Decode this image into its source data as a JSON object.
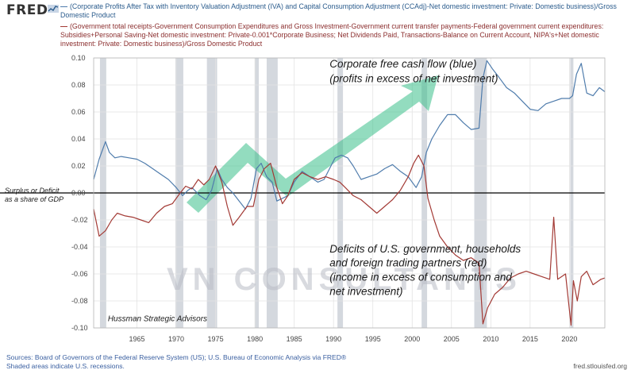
{
  "header": {
    "logo_text": "FRED",
    "logo_icon": "fred-graph-icon"
  },
  "footer": {
    "source": "Sources: Board of Governors of the Federal Reserve System (US); U.S. Bureau of Economic Analysis via FRED®",
    "recession_note": "Shaded areas indicate U.S. recessions.",
    "site": "fred.stlouisfed.org"
  },
  "watermark": "VN CONSULTANTS",
  "chart_data": {
    "type": "line",
    "title": "",
    "xlabel": "",
    "ylabel": "Surplus or Deficit as a share of GDP",
    "ylabel_lines": [
      "Surplus or Deficit",
      "as a share of GDP"
    ],
    "xlim": [
      1959.5,
      2024.5
    ],
    "ylim": [
      -0.1,
      0.1
    ],
    "y_ticks": [
      0.1,
      0.08,
      0.06,
      0.04,
      0.02,
      0.0,
      -0.02,
      -0.04,
      -0.06,
      -0.08,
      -0.1
    ],
    "y_tick_labels": [
      "0.10",
      "0.08",
      "0.06",
      "0.04",
      "0.02",
      "0.00",
      "-0.02",
      "-0.04",
      "-0.06",
      "-0.08",
      "-0.10"
    ],
    "x_ticks": [
      1965,
      1970,
      1975,
      1980,
      1985,
      1990,
      1995,
      2000,
      2005,
      2010,
      2015,
      2020
    ],
    "x_tick_labels": [
      "1965",
      "1970",
      "1975",
      "1980",
      "1985",
      "1990",
      "1995",
      "2000",
      "2005",
      "2010",
      "2015",
      "2020"
    ],
    "grid": true,
    "legend_position": "top",
    "recessions": [
      [
        1960.3,
        1961.1
      ],
      [
        1969.9,
        1970.9
      ],
      [
        1973.9,
        1975.2
      ],
      [
        1980.0,
        1980.5
      ],
      [
        1981.5,
        1982.9
      ],
      [
        1990.5,
        1991.2
      ],
      [
        2001.2,
        2001.9
      ],
      [
        2007.9,
        2009.5
      ],
      [
        2020.1,
        2020.5
      ]
    ],
    "zero_line": 0.0,
    "series": [
      {
        "name": "(Corporate Profits After Tax with Inventory Valuation Adjustment (IVA) and Capital Consumption Adjustment (CCAdj)-Net domestic investment: Private: Domestic business)/Gross Domestic Product",
        "color": "#4f7cac",
        "x": [
          1959.5,
          1960.2,
          1961.0,
          1961.5,
          1962.2,
          1963.0,
          1964.0,
          1965.0,
          1966.0,
          1967.0,
          1968.0,
          1969.0,
          1970.0,
          1970.8,
          1971.5,
          1972.0,
          1973.0,
          1973.8,
          1974.5,
          1975.2,
          1975.8,
          1976.5,
          1977.2,
          1978.0,
          1978.8,
          1979.5,
          1980.2,
          1980.8,
          1981.5,
          1982.2,
          1982.8,
          1983.5,
          1984.2,
          1985.0,
          1986.0,
          1987.0,
          1988.0,
          1988.8,
          1989.5,
          1990.2,
          1991.0,
          1991.8,
          1992.5,
          1993.5,
          1994.5,
          1995.5,
          1996.5,
          1997.5,
          1998.5,
          1999.5,
          2000.5,
          2001.2,
          2001.8,
          2002.5,
          2003.5,
          2004.5,
          2005.5,
          2006.5,
          2007.5,
          2008.5,
          2009.0,
          2009.5,
          2010.2,
          2011.0,
          2012.0,
          2013.0,
          2014.0,
          2015.0,
          2016.0,
          2017.0,
          2018.0,
          2019.0,
          2020.0,
          2020.4,
          2020.9,
          2021.5,
          2022.2,
          2023.0,
          2023.8,
          2024.5
        ],
        "y": [
          0.01,
          0.025,
          0.038,
          0.03,
          0.026,
          0.027,
          0.026,
          0.025,
          0.022,
          0.018,
          0.014,
          0.01,
          0.004,
          -0.002,
          0.002,
          0.004,
          -0.002,
          -0.005,
          0.002,
          0.018,
          0.01,
          0.004,
          0.0,
          -0.006,
          -0.012,
          -0.004,
          0.018,
          0.022,
          0.012,
          0.008,
          -0.006,
          -0.004,
          -0.002,
          0.008,
          0.016,
          0.012,
          0.008,
          0.01,
          0.018,
          0.026,
          0.028,
          0.026,
          0.02,
          0.01,
          0.012,
          0.014,
          0.018,
          0.021,
          0.016,
          0.012,
          0.004,
          0.012,
          0.03,
          0.04,
          0.05,
          0.058,
          0.058,
          0.052,
          0.047,
          0.048,
          0.085,
          0.098,
          0.092,
          0.086,
          0.078,
          0.074,
          0.068,
          0.062,
          0.061,
          0.066,
          0.068,
          0.07,
          0.07,
          0.072,
          0.088,
          0.096,
          0.074,
          0.072,
          0.078,
          0.075
        ]
      },
      {
        "name": "(Government total receipts-Government Consumption Expenditures and Gross Investment-Government current transfer payments-Federal government current expenditures: Subsidies+Personal Saving-Net domestic investment: Private-0.001*Corporate Business; Net Dividends Paid, Transactions-Balance on Current Account, NIPA's+Net domestic investment: Private: Domestic business)/Gross Domestic Product",
        "color": "#a33a35",
        "x": [
          1959.5,
          1960.2,
          1961.0,
          1961.8,
          1962.5,
          1963.5,
          1964.5,
          1965.5,
          1966.5,
          1967.5,
          1968.5,
          1969.5,
          1970.5,
          1971.2,
          1972.0,
          1972.8,
          1973.5,
          1974.2,
          1975.0,
          1975.8,
          1976.5,
          1977.2,
          1978.0,
          1979.0,
          1979.8,
          1980.5,
          1981.2,
          1982.0,
          1982.8,
          1983.5,
          1984.2,
          1985.0,
          1986.0,
          1987.0,
          1988.0,
          1989.0,
          1990.0,
          1990.8,
          1991.5,
          1992.5,
          1993.5,
          1994.5,
          1995.5,
          1996.5,
          1997.5,
          1998.5,
          1999.5,
          2000.2,
          2000.8,
          2001.5,
          2002.0,
          2002.8,
          2003.5,
          2004.5,
          2005.5,
          2006.5,
          2007.5,
          2008.5,
          2009.0,
          2009.6,
          2010.5,
          2011.5,
          2012.5,
          2013.5,
          2014.5,
          2015.5,
          2016.5,
          2017.5,
          2018.0,
          2018.5,
          2019.5,
          2020.2,
          2020.5,
          2021.0,
          2021.5,
          2022.2,
          2023.0,
          2024.0,
          2024.5
        ],
        "y": [
          -0.012,
          -0.032,
          -0.028,
          -0.02,
          -0.015,
          -0.017,
          -0.018,
          -0.02,
          -0.022,
          -0.015,
          -0.01,
          -0.008,
          0.0,
          0.005,
          0.003,
          0.01,
          0.006,
          0.01,
          0.02,
          0.008,
          -0.01,
          -0.024,
          -0.018,
          -0.01,
          -0.01,
          0.01,
          0.018,
          0.022,
          0.004,
          -0.008,
          -0.002,
          0.01,
          0.015,
          0.012,
          0.01,
          0.012,
          0.01,
          0.008,
          0.004,
          -0.002,
          -0.005,
          -0.01,
          -0.015,
          -0.01,
          -0.005,
          0.002,
          0.012,
          0.022,
          0.028,
          0.02,
          -0.004,
          -0.02,
          -0.032,
          -0.04,
          -0.046,
          -0.05,
          -0.048,
          -0.052,
          -0.097,
          -0.085,
          -0.075,
          -0.07,
          -0.063,
          -0.06,
          -0.058,
          -0.06,
          -0.062,
          -0.064,
          -0.018,
          -0.064,
          -0.06,
          -0.098,
          -0.065,
          -0.08,
          -0.062,
          -0.058,
          -0.068,
          -0.064,
          -0.063
        ]
      }
    ],
    "annotations": [
      {
        "id": "blue-note-1",
        "text": "Corporate free cash flow (blue)",
        "x": 1989.5,
        "y": 0.093
      },
      {
        "id": "blue-note-2",
        "text": "(profits in excess of net investment)",
        "x": 1989.5,
        "y": 0.082
      },
      {
        "id": "red-note-1",
        "text": "Deficits of U.S. government, households",
        "x": 1989.5,
        "y": -0.044
      },
      {
        "id": "red-note-2",
        "text": "and foreign trading partners (red)",
        "x": 1989.5,
        "y": -0.0545
      },
      {
        "id": "red-note-3",
        "text": "(income in excess of consumption and",
        "x": 1989.5,
        "y": -0.065
      },
      {
        "id": "red-note-4",
        "text": "net investment)",
        "x": 1989.5,
        "y": -0.0755
      },
      {
        "id": "credit",
        "text": "Hussman Strategic Advisors",
        "x": 1961.3,
        "y": -0.095
      }
    ]
  }
}
